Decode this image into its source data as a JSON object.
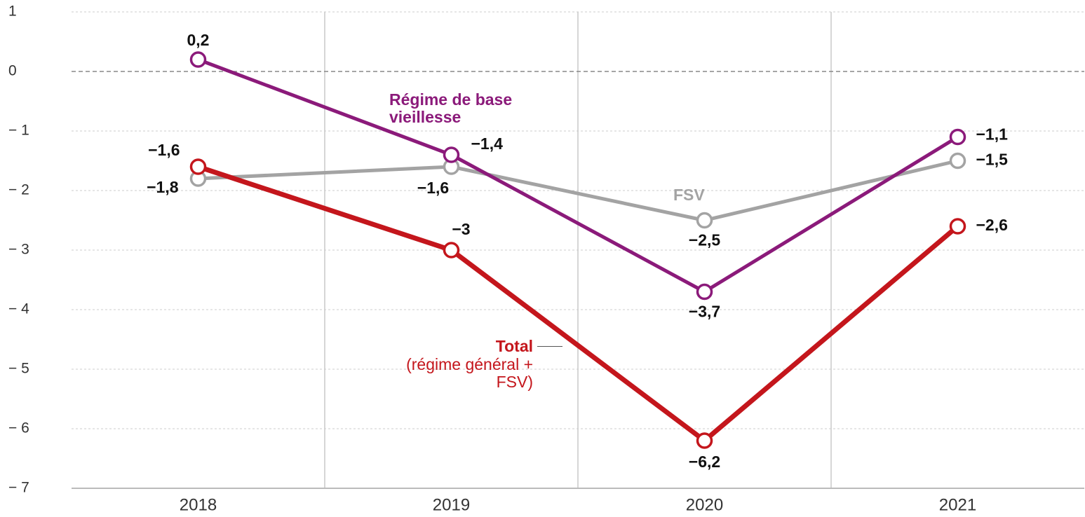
{
  "chart_data": {
    "type": "line",
    "categories": [
      "2018",
      "2019",
      "2020",
      "2021"
    ],
    "series": [
      {
        "name": "Régime de base vieillesse",
        "color": "#8b1a7a",
        "values": [
          0.2,
          -1.4,
          -3.7,
          -1.1
        ],
        "value_labels": [
          "0,2",
          "−1,4",
          "−3,7",
          "−1,1"
        ]
      },
      {
        "name": "FSV",
        "color": "#a3a3a3",
        "values": [
          -1.8,
          -1.6,
          -2.5,
          -1.5
        ],
        "value_labels": [
          "−1,8",
          "−1,6",
          "−2,5",
          "−1,5"
        ]
      },
      {
        "name": "Total",
        "note": "(régime général + FSV)",
        "color": "#c4161c",
        "values": [
          -1.6,
          -3,
          -6.2,
          -2.6
        ],
        "value_labels": [
          "−1,6",
          "−3",
          "−6,2",
          "−2,6"
        ]
      }
    ],
    "ylim": [
      -7,
      1
    ],
    "yticks": [
      1,
      0,
      {
        "value": -1,
        "label": "− 1"
      },
      {
        "value": -2,
        "label": "− 2"
      },
      {
        "value": -3,
        "label": "− 3"
      },
      {
        "value": -4,
        "label": "− 4"
      },
      {
        "value": -5,
        "label": "− 5"
      },
      {
        "value": -6,
        "label": "− 6"
      },
      {
        "value": -7,
        "label": "− 7"
      }
    ],
    "grid": true
  }
}
